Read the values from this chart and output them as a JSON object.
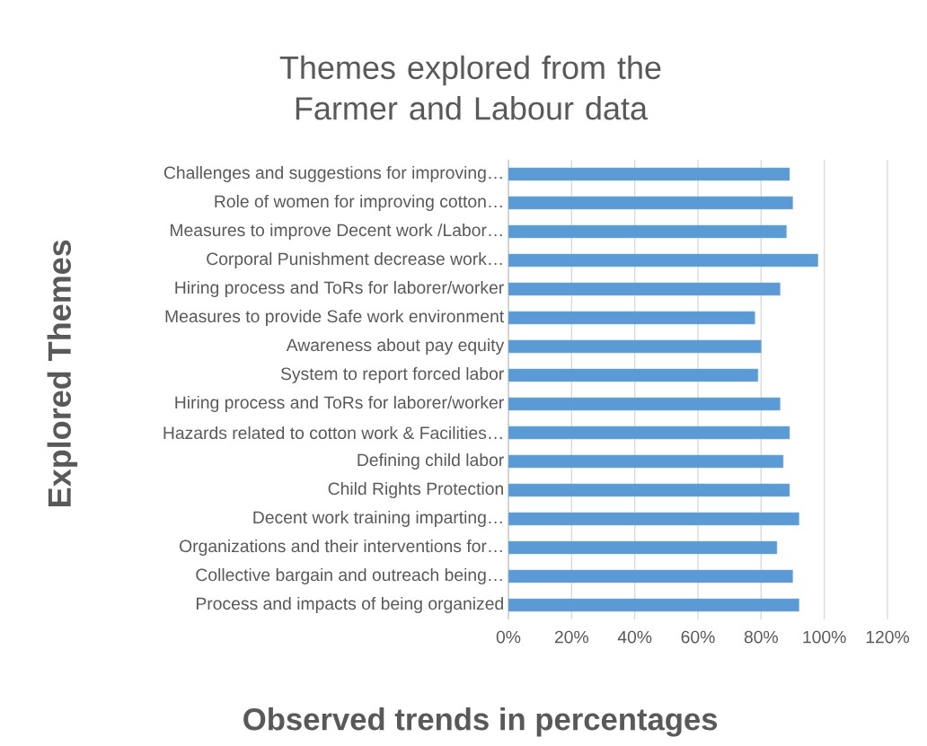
{
  "chart_data": {
    "type": "bar",
    "orientation": "horizontal",
    "title": "Themes explored from the Farmer and Labour data",
    "xlabel": "Observed trends in percentages",
    "ylabel": "Explored Themes",
    "categories": [
      "Challenges and suggestions for improving…",
      "Role of women for improving cotton…",
      "Measures to improve Decent work /Labor…",
      "Corporal Punishment decrease work…",
      "Hiring process and ToRs for laborer/worker",
      "Measures to provide Safe work environment",
      "Awareness about pay equity",
      "System to report forced labor",
      "Hiring process and ToRs for laborer/worker",
      "Hazards related to cotton work & Facilities…",
      "Defining child labor",
      "Child Rights Protection",
      "Decent work training imparting…",
      "Organizations and their interventions for…",
      "Collective bargain and outreach being…",
      "Process and impacts of being organized"
    ],
    "values": [
      89,
      90,
      88,
      98,
      86,
      78,
      80,
      79,
      86,
      89,
      87,
      89,
      92,
      85,
      90,
      92
    ],
    "color": "#5b9bd5",
    "xlim": [
      0,
      120
    ],
    "xticks": [
      {
        "value": 0,
        "label": "0%"
      },
      {
        "value": 20,
        "label": "20%"
      },
      {
        "value": 40,
        "label": "40%"
      },
      {
        "value": 60,
        "label": "60%"
      },
      {
        "value": 80,
        "label": "80%"
      },
      {
        "value": 100,
        "label": "100%"
      },
      {
        "value": 120,
        "label": "120%"
      }
    ],
    "grid": "x"
  }
}
